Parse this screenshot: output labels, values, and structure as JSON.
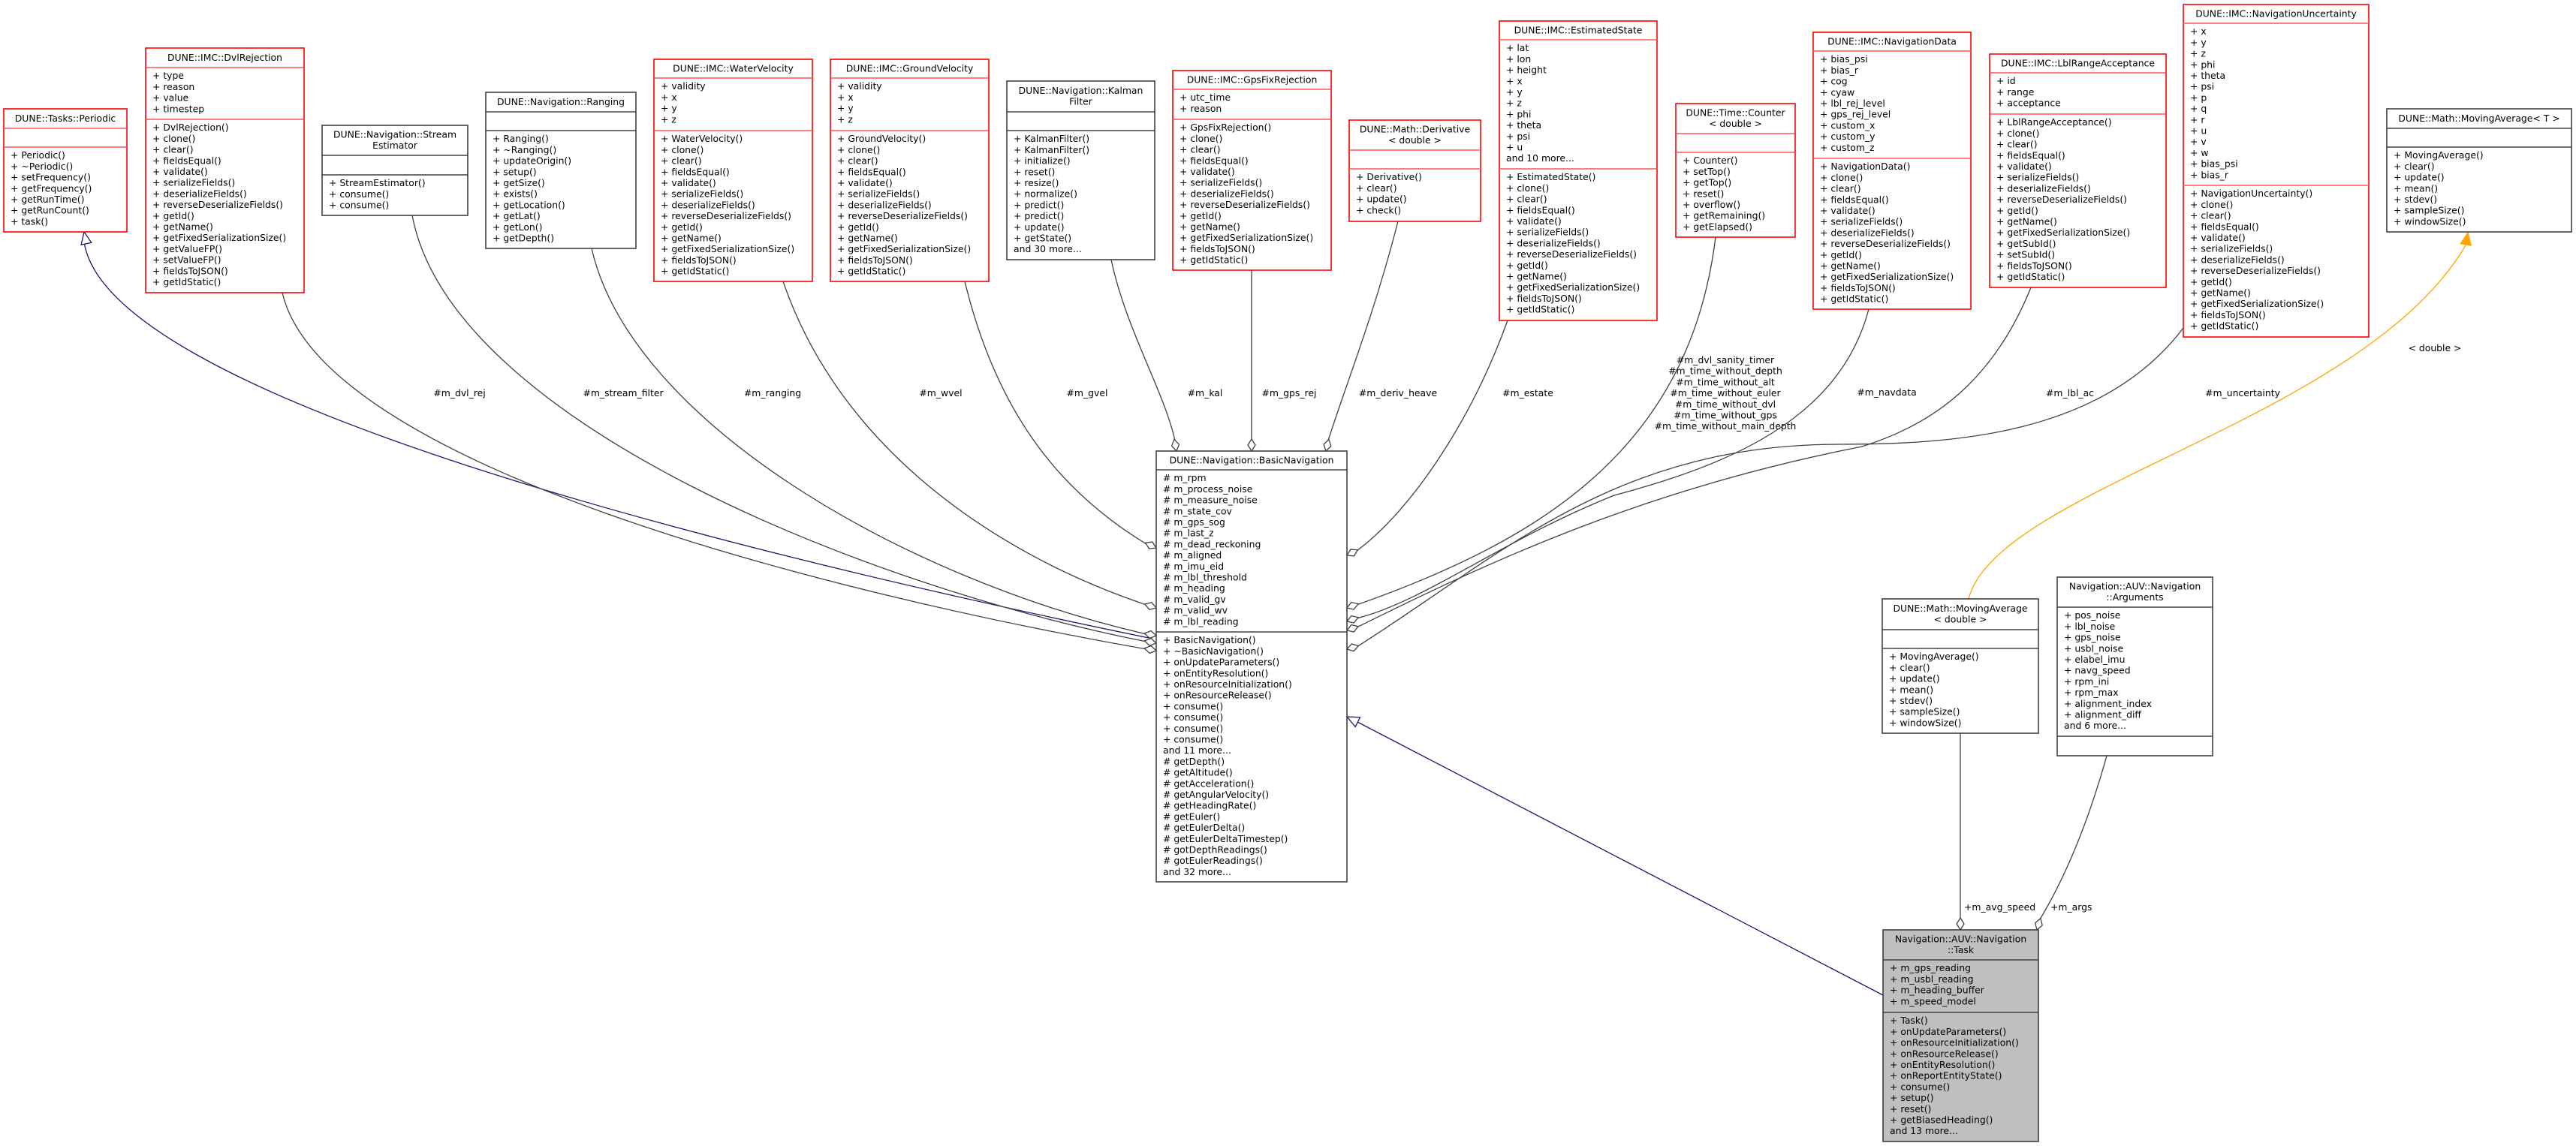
{
  "colors": {
    "member_border": "#ff0000",
    "member_divider": "#ff5555",
    "class_border": "#404040",
    "focus_fill": "#bfbfbf",
    "inherit_edge": "#191970",
    "usage_edge": "#404040",
    "template_edge": "#ffa500"
  },
  "nodes": {
    "periodic": {
      "title": [
        "DUNE::Tasks::Periodic"
      ],
      "style": "red",
      "attrs": [],
      "methods": [
        "+ Periodic()",
        "+ ~Periodic()",
        "+ setFrequency()",
        "+ getFrequency()",
        "+ getRunTime()",
        "+ getRunCount()",
        "+ task()"
      ]
    },
    "dvl": {
      "title": [
        "DUNE::IMC::DvlRejection"
      ],
      "style": "red",
      "attrs": [
        "+ type",
        "+ reason",
        "+ value",
        "+ timestep"
      ],
      "methods": [
        "+ DvlRejection()",
        "+ clone()",
        "+ clear()",
        "+ fieldsEqual()",
        "+ validate()",
        "+ serializeFields()",
        "+ deserializeFields()",
        "+ reverseDeserializeFields()",
        "+ getId()",
        "+ getName()",
        "+ getFixedSerializationSize()",
        "+ getValueFP()",
        "+ setValueFP()",
        "+ fieldsToJSON()",
        "+ getIdStatic()"
      ]
    },
    "stream": {
      "title": [
        "DUNE::Navigation::Stream",
        "Estimator"
      ],
      "style": "black",
      "attrs": [],
      "methods": [
        "+ StreamEstimator()",
        "+ consume()",
        "+ consume()"
      ]
    },
    "ranging": {
      "title": [
        "DUNE::Navigation::Ranging"
      ],
      "style": "black",
      "attrs": [],
      "methods": [
        "+ Ranging()",
        "+ ~Ranging()",
        "+ updateOrigin()",
        "+ setup()",
        "+ getSize()",
        "+ exists()",
        "+ getLocation()",
        "+ getLat()",
        "+ getLon()",
        "+ getDepth()"
      ]
    },
    "wvel": {
      "title": [
        "DUNE::IMC::WaterVelocity"
      ],
      "style": "red",
      "attrs": [
        "+ validity",
        "+ x",
        "+ y",
        "+ z"
      ],
      "methods": [
        "+ WaterVelocity()",
        "+ clone()",
        "+ clear()",
        "+ fieldsEqual()",
        "+ validate()",
        "+ serializeFields()",
        "+ deserializeFields()",
        "+ reverseDeserializeFields()",
        "+ getId()",
        "+ getName()",
        "+ getFixedSerializationSize()",
        "+ fieldsToJSON()",
        "+ getIdStatic()"
      ]
    },
    "gvel": {
      "title": [
        "DUNE::IMC::GroundVelocity"
      ],
      "style": "red",
      "attrs": [
        "+ validity",
        "+ x",
        "+ y",
        "+ z"
      ],
      "methods": [
        "+ GroundVelocity()",
        "+ clone()",
        "+ clear()",
        "+ fieldsEqual()",
        "+ validate()",
        "+ serializeFields()",
        "+ deserializeFields()",
        "+ reverseDeserializeFields()",
        "+ getId()",
        "+ getName()",
        "+ getFixedSerializationSize()",
        "+ fieldsToJSON()",
        "+ getIdStatic()"
      ]
    },
    "kalman": {
      "title": [
        "DUNE::Navigation::Kalman",
        "Filter"
      ],
      "style": "black",
      "attrs": [],
      "methods": [
        "+ KalmanFilter()",
        "+ KalmanFilter()",
        "+ initialize()",
        "+ reset()",
        "+ resize()",
        "+ normalize()",
        "+ predict()",
        "+ predict()",
        "+ update()",
        "+ getState()",
        "and 30 more..."
      ]
    },
    "gpsfix": {
      "title": [
        "DUNE::IMC::GpsFixRejection"
      ],
      "style": "red",
      "attrs": [
        "+ utc_time",
        "+ reason"
      ],
      "methods": [
        "+ GpsFixRejection()",
        "+ clone()",
        "+ clear()",
        "+ fieldsEqual()",
        "+ validate()",
        "+ serializeFields()",
        "+ deserializeFields()",
        "+ reverseDeserializeFields()",
        "+ getId()",
        "+ getName()",
        "+ getFixedSerializationSize()",
        "+ fieldsToJSON()",
        "+ getIdStatic()"
      ]
    },
    "deriv": {
      "title": [
        "DUNE::Math::Derivative",
        "< double >"
      ],
      "style": "red",
      "attrs": [],
      "methods": [
        "+ Derivative()",
        "+ clear()",
        "+ update()",
        "+ check()"
      ]
    },
    "estate": {
      "title": [
        "DUNE::IMC::EstimatedState"
      ],
      "style": "red",
      "attrs": [
        "+ lat",
        "+ lon",
        "+ height",
        "+ x",
        "+ y",
        "+ z",
        "+ phi",
        "+ theta",
        "+ psi",
        "+ u",
        "and 10 more..."
      ],
      "methods": [
        "+ EstimatedState()",
        "+ clone()",
        "+ clear()",
        "+ fieldsEqual()",
        "+ validate()",
        "+ serializeFields()",
        "+ deserializeFields()",
        "+ reverseDeserializeFields()",
        "+ getId()",
        "+ getName()",
        "+ getFixedSerializationSize()",
        "+ fieldsToJSON()",
        "+ getIdStatic()"
      ]
    },
    "counter": {
      "title": [
        "DUNE::Time::Counter",
        "< double >"
      ],
      "style": "red",
      "attrs": [],
      "methods": [
        "+ Counter()",
        "+ setTop()",
        "+ getTop()",
        "+ reset()",
        "+ overflow()",
        "+ getRemaining()",
        "+ getElapsed()"
      ]
    },
    "navdata": {
      "title": [
        "DUNE::IMC::NavigationData"
      ],
      "style": "red",
      "attrs": [
        "+ bias_psi",
        "+ bias_r",
        "+ cog",
        "+ cyaw",
        "+ lbl_rej_level",
        "+ gps_rej_level",
        "+ custom_x",
        "+ custom_y",
        "+ custom_z"
      ],
      "methods": [
        "+ NavigationData()",
        "+ clone()",
        "+ clear()",
        "+ fieldsEqual()",
        "+ validate()",
        "+ serializeFields()",
        "+ deserializeFields()",
        "+ reverseDeserializeFields()",
        "+ getId()",
        "+ getName()",
        "+ getFixedSerializationSize()",
        "+ fieldsToJSON()",
        "+ getIdStatic()"
      ]
    },
    "lbl": {
      "title": [
        "DUNE::IMC::LblRangeAcceptance"
      ],
      "style": "red",
      "attrs": [
        "+ id",
        "+ range",
        "+ acceptance"
      ],
      "methods": [
        "+ LblRangeAcceptance()",
        "+ clone()",
        "+ clear()",
        "+ fieldsEqual()",
        "+ validate()",
        "+ serializeFields()",
        "+ deserializeFields()",
        "+ reverseDeserializeFields()",
        "+ getId()",
        "+ getName()",
        "+ getFixedSerializationSize()",
        "+ getSubId()",
        "+ setSubId()",
        "+ fieldsToJSON()",
        "+ getIdStatic()"
      ]
    },
    "navunc": {
      "title": [
        "DUNE::IMC::NavigationUncertainty"
      ],
      "style": "red",
      "attrs": [
        "+ x",
        "+ y",
        "+ z",
        "+ phi",
        "+ theta",
        "+ psi",
        "+ p",
        "+ q",
        "+ r",
        "+ u",
        "+ v",
        "+ w",
        "+ bias_psi",
        "+ bias_r"
      ],
      "methods": [
        "+ NavigationUncertainty()",
        "+ clone()",
        "+ clear()",
        "+ fieldsEqual()",
        "+ validate()",
        "+ serializeFields()",
        "+ deserializeFields()",
        "+ reverseDeserializeFields()",
        "+ getId()",
        "+ getName()",
        "+ getFixedSerializationSize()",
        "+ fieldsToJSON()",
        "+ getIdStatic()"
      ]
    },
    "movavgT": {
      "title": [
        "DUNE::Math::MovingAverage< T >"
      ],
      "style": "black",
      "attrs": [],
      "methods": [
        "+ MovingAverage()",
        "+ clear()",
        "+ update()",
        "+ mean()",
        "+ stdev()",
        "+ sampleSize()",
        "+ windowSize()"
      ]
    },
    "basic": {
      "title": [
        "DUNE::Navigation::BasicNavigation"
      ],
      "style": "black",
      "attrs": [
        "# m_rpm",
        "# m_process_noise",
        "# m_measure_noise",
        "# m_state_cov",
        "# m_gps_sog",
        "# m_last_z",
        "# m_dead_reckoning",
        "# m_aligned",
        "# m_imu_eid",
        "# m_lbl_threshold",
        "# m_heading",
        "# m_valid_gv",
        "# m_valid_wv",
        "# m_lbl_reading"
      ],
      "methods": [
        "+ BasicNavigation()",
        "+ ~BasicNavigation()",
        "+ onUpdateParameters()",
        "+ onEntityResolution()",
        "+ onResourceInitialization()",
        "+ onResourceRelease()",
        "+ consume()",
        "+ consume()",
        "+ consume()",
        "+ consume()",
        "and 11 more...",
        "# getDepth()",
        "# getAltitude()",
        "# getAcceleration()",
        "# getAngularVelocity()",
        "# getHeadingRate()",
        "# getEuler()",
        "# getEulerDelta()",
        "# getEulerDeltaTimestep()",
        "# gotDepthReadings()",
        "# gotEulerReadings()",
        "and 32 more..."
      ]
    },
    "movavgD": {
      "title": [
        "DUNE::Math::MovingAverage",
        "< double >"
      ],
      "style": "black",
      "attrs": [],
      "methods": [
        "+ MovingAverage()",
        "+ clear()",
        "+ update()",
        "+ mean()",
        "+ stdev()",
        "+ sampleSize()",
        "+ windowSize()"
      ]
    },
    "args": {
      "title": [
        "Navigation::AUV::Navigation",
        "::Arguments"
      ],
      "style": "black",
      "attrs": [
        "+ pos_noise",
        "+ lbl_noise",
        "+ gps_noise",
        "+ usbl_noise",
        "+ elabel_imu",
        "+ navg_speed",
        "+ rpm_ini",
        "+ rpm_max",
        "+ alignment_index",
        "+ alignment_diff",
        "and 6 more..."
      ],
      "methods": []
    },
    "task": {
      "title": [
        "Navigation::AUV::Navigation",
        "::Task"
      ],
      "style": "focus",
      "attrs": [
        "+ m_gps_reading",
        "+ m_usbl_reading",
        "+ m_heading_buffer",
        "+ m_speed_model"
      ],
      "methods": [
        "+ Task()",
        "+ onUpdateParameters()",
        "+ onResourceInitialization()",
        "+ onResourceRelease()",
        "+ onEntityResolution()",
        "+ onReportEntityState()",
        "+ consume()",
        "+ setup()",
        "+ reset()",
        "+ getBiasedHeading()",
        "and 13 more..."
      ]
    }
  },
  "edges": [
    {
      "id": "periodic-basic",
      "kind": "inherit",
      "label": []
    },
    {
      "id": "dvl-basic",
      "kind": "usage",
      "label": [
        "#m_dvl_rej"
      ]
    },
    {
      "id": "stream-basic",
      "kind": "usage",
      "label": [
        "#m_stream_filter"
      ]
    },
    {
      "id": "ranging-basic",
      "kind": "usage",
      "label": [
        "#m_ranging"
      ]
    },
    {
      "id": "wvel-basic",
      "kind": "usage",
      "label": [
        "#m_wvel"
      ]
    },
    {
      "id": "gvel-basic",
      "kind": "usage",
      "label": [
        "#m_gvel"
      ]
    },
    {
      "id": "kalman-basic",
      "kind": "usage",
      "label": [
        "#m_kal"
      ]
    },
    {
      "id": "gpsfix-basic",
      "kind": "usage",
      "label": [
        "#m_gps_rej"
      ]
    },
    {
      "id": "deriv-basic",
      "kind": "usage",
      "label": [
        "#m_deriv_heave"
      ]
    },
    {
      "id": "estate-basic",
      "kind": "usage",
      "label": [
        "#m_estate"
      ]
    },
    {
      "id": "counter-basic",
      "kind": "usage",
      "label": [
        "#m_dvl_sanity_timer",
        "#m_time_without_depth",
        "#m_time_without_alt",
        "#m_time_without_euler",
        "#m_time_without_dvl",
        "#m_time_without_gps",
        "#m_time_without_main_depth"
      ]
    },
    {
      "id": "navdata-basic",
      "kind": "usage",
      "label": [
        "#m_navdata"
      ]
    },
    {
      "id": "lbl-basic",
      "kind": "usage",
      "label": [
        "#m_lbl_ac"
      ]
    },
    {
      "id": "navunc-basic",
      "kind": "usage",
      "label": [
        "#m_uncertainty"
      ]
    },
    {
      "id": "movavgD-movavgT",
      "kind": "template",
      "label": [
        "< double >"
      ]
    },
    {
      "id": "task-basic",
      "kind": "inherit",
      "label": []
    },
    {
      "id": "movavgD-task",
      "kind": "usage",
      "label": [
        "+m_avg_speed"
      ]
    },
    {
      "id": "args-task",
      "kind": "usage",
      "label": [
        "+m_args"
      ]
    }
  ]
}
